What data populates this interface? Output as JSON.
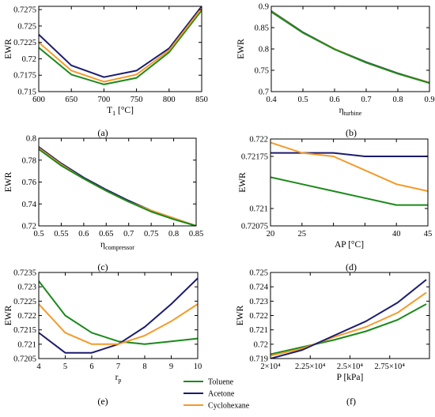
{
  "legend": {
    "items": [
      {
        "name": "Toluene",
        "color": "#1a8a1a"
      },
      {
        "name": "Acetone",
        "color": "#1c1c6e"
      },
      {
        "name": "Cyclohexane",
        "color": "#f59a2a"
      }
    ]
  },
  "chart_data": [
    {
      "panel": "(a)",
      "type": "line",
      "xlabel": "T1 [°C]",
      "xlabel_main": "T",
      "xlabel_sub": "1",
      "xlabel_rest": " [°C]",
      "ylabel": "EWR",
      "xlim": [
        600,
        850
      ],
      "ylim": [
        0.715,
        0.728
      ],
      "xticks": [
        600,
        650,
        700,
        750,
        800,
        850
      ],
      "xtick_labels": [
        "600",
        "650",
        "700",
        "750",
        "800",
        "850"
      ],
      "yticks": [
        0.715,
        0.7175,
        0.72,
        0.7225,
        0.725,
        0.7275
      ],
      "ytick_labels": [
        "0.715",
        "0.7175",
        "0.72",
        "0.7225",
        "0.725",
        "0.7275"
      ],
      "series": [
        {
          "name": "Toluene",
          "color": "#1a8a1a",
          "x": [
            600,
            650,
            700,
            750,
            800,
            850
          ],
          "y": [
            0.7217,
            0.7176,
            0.7161,
            0.7171,
            0.721,
            0.7274
          ]
        },
        {
          "name": "Acetone",
          "color": "#1c1c6e",
          "x": [
            600,
            650,
            700,
            750,
            800,
            850
          ],
          "y": [
            0.7237,
            0.719,
            0.7172,
            0.7182,
            0.7216,
            0.728
          ]
        },
        {
          "name": "Cyclohexane",
          "color": "#f59a2a",
          "x": [
            600,
            650,
            700,
            750,
            800,
            850
          ],
          "y": [
            0.7225,
            0.7182,
            0.7165,
            0.7176,
            0.7213,
            0.7277
          ]
        }
      ]
    },
    {
      "panel": "(b)",
      "type": "line",
      "xlabel": "ηturbine",
      "xlabel_main": "η",
      "xlabel_sub": "turbine",
      "xlabel_rest": "",
      "ylabel": "EWR",
      "xlim": [
        0.4,
        0.9
      ],
      "ylim": [
        0.7,
        0.9
      ],
      "xticks": [
        0.4,
        0.5,
        0.6,
        0.7,
        0.8,
        0.9
      ],
      "xtick_labels": [
        "0.4",
        "0.5",
        "0.6",
        "0.7",
        "0.8",
        "0.9"
      ],
      "yticks": [
        0.7,
        0.75,
        0.8,
        0.85,
        0.9
      ],
      "ytick_labels": [
        "0.7",
        "0.75",
        "0.8",
        "0.85",
        "0.9"
      ],
      "series": [
        {
          "name": "Acetone",
          "color": "#1c1c6e",
          "x": [
            0.4,
            0.5,
            0.6,
            0.7,
            0.8,
            0.9
          ],
          "y": [
            0.889,
            0.839,
            0.8,
            0.769,
            0.743,
            0.721
          ]
        },
        {
          "name": "Cyclohexane",
          "color": "#f59a2a",
          "x": [
            0.4,
            0.5,
            0.6,
            0.7,
            0.8,
            0.9
          ],
          "y": [
            0.888,
            0.838,
            0.8,
            0.768,
            0.742,
            0.721
          ]
        },
        {
          "name": "Toluene",
          "color": "#1a8a1a",
          "x": [
            0.4,
            0.5,
            0.6,
            0.7,
            0.8,
            0.9
          ],
          "y": [
            0.887,
            0.838,
            0.799,
            0.768,
            0.742,
            0.72
          ]
        }
      ]
    },
    {
      "panel": "(c)",
      "type": "line",
      "xlabel": "ηcompressor",
      "xlabel_main": "η",
      "xlabel_sub": "compressor",
      "xlabel_rest": "",
      "ylabel": "EWR",
      "xlim": [
        0.5,
        0.85
      ],
      "ylim": [
        0.72,
        0.8
      ],
      "xticks": [
        0.5,
        0.55,
        0.6,
        0.65,
        0.7,
        0.75,
        0.8,
        0.85
      ],
      "xtick_labels": [
        "0.5",
        "0.55",
        "0.6",
        "0.65",
        "0.7",
        "0.75",
        "0.8",
        "0.85"
      ],
      "yticks": [
        0.72,
        0.74,
        0.76,
        0.78,
        0.8
      ],
      "ytick_labels": [
        "0.72",
        "0.74",
        "0.76",
        "0.78",
        "0.8"
      ],
      "series": [
        {
          "name": "Acetone",
          "color": "#1c1c6e",
          "x": [
            0.5,
            0.55,
            0.6,
            0.65,
            0.7,
            0.75,
            0.8,
            0.85
          ],
          "y": [
            0.792,
            0.777,
            0.764,
            0.753,
            0.743,
            0.734,
            0.727,
            0.72
          ]
        },
        {
          "name": "Cyclohexane",
          "color": "#f59a2a",
          "x": [
            0.5,
            0.55,
            0.6,
            0.65,
            0.7,
            0.75,
            0.8,
            0.85
          ],
          "y": [
            0.791,
            0.776,
            0.763,
            0.752,
            0.742,
            0.734,
            0.727,
            0.72
          ]
        },
        {
          "name": "Toluene",
          "color": "#1a8a1a",
          "x": [
            0.5,
            0.55,
            0.6,
            0.65,
            0.7,
            0.75,
            0.8,
            0.85
          ],
          "y": [
            0.79,
            0.775,
            0.763,
            0.752,
            0.742,
            0.733,
            0.726,
            0.72
          ]
        }
      ]
    },
    {
      "panel": "(d)",
      "type": "line",
      "xlabel": "AP [°C]",
      "xlabel_main": "AP [°C]",
      "xlabel_sub": "",
      "xlabel_rest": "",
      "ylabel": "EWR",
      "xlim": [
        20,
        45
      ],
      "ylim": [
        0.72075,
        0.722
      ],
      "xticks": [
        20,
        25,
        30,
        35,
        40,
        45
      ],
      "xtick_labels": [
        "20",
        "25",
        "",
        "",
        "40",
        "45"
      ],
      "yticks": [
        0.72075,
        0.721,
        0.72175,
        0.722
      ],
      "ytick_labels": [
        "0.72075",
        "0.721",
        "0.72175",
        "0.722"
      ],
      "series": [
        {
          "name": "Acetone",
          "color": "#1c1c6e",
          "x": [
            20,
            25,
            30,
            35,
            40,
            45
          ],
          "y": [
            0.7218,
            0.7218,
            0.7218,
            0.72175,
            0.72175,
            0.72175
          ]
        },
        {
          "name": "Cyclohexane",
          "color": "#f59a2a",
          "x": [
            20,
            25,
            30,
            35,
            40,
            45
          ],
          "y": [
            0.72195,
            0.7218,
            0.72175,
            0.72155,
            0.72135,
            0.72125
          ]
        },
        {
          "name": "Toluene",
          "color": "#1a8a1a",
          "x": [
            20,
            25,
            30,
            35,
            40,
            45
          ],
          "y": [
            0.72145,
            0.72135,
            0.72125,
            0.72115,
            0.72105,
            0.72105
          ]
        }
      ]
    },
    {
      "panel": "(e)",
      "type": "line",
      "xlabel": "rp",
      "xlabel_main": "r",
      "xlabel_sub": "p",
      "xlabel_rest": "",
      "ylabel": "EWR",
      "xlim": [
        4,
        10
      ],
      "ylim": [
        0.7205,
        0.7235
      ],
      "xticks": [
        4,
        5,
        6,
        7,
        8,
        9,
        10
      ],
      "xtick_labels": [
        "4",
        "5",
        "6",
        "7",
        "8",
        "9",
        "10"
      ],
      "yticks": [
        0.7205,
        0.721,
        0.7215,
        0.722,
        0.7225,
        0.723,
        0.7235
      ],
      "ytick_labels": [
        "0.7205",
        "0.721",
        "0.7215",
        "0.722",
        "0.7225",
        "0.723",
        "0.7235"
      ],
      "series": [
        {
          "name": "Toluene",
          "color": "#1a8a1a",
          "x": [
            4,
            5,
            6,
            7,
            8,
            9,
            10
          ],
          "y": [
            0.7232,
            0.722,
            0.7214,
            0.7211,
            0.721,
            0.7211,
            0.7212
          ]
        },
        {
          "name": "Acetone",
          "color": "#1c1c6e",
          "x": [
            4,
            5,
            6,
            7,
            8,
            9,
            10
          ],
          "y": [
            0.7214,
            0.7207,
            0.7207,
            0.721,
            0.7216,
            0.7224,
            0.7233
          ]
        },
        {
          "name": "Cyclohexane",
          "color": "#f59a2a",
          "x": [
            4,
            5,
            6,
            7,
            8,
            9,
            10
          ],
          "y": [
            0.7224,
            0.7214,
            0.721,
            0.721,
            0.7213,
            0.7218,
            0.7224
          ]
        }
      ]
    },
    {
      "panel": "(f)",
      "type": "line",
      "xlabel": "P [kPa]",
      "xlabel_main": "P [kPa]",
      "xlabel_sub": "",
      "xlabel_rest": "",
      "ylabel": "EWR",
      "xlim": [
        20000,
        30000
      ],
      "ylim": [
        0.719,
        0.725
      ],
      "xticks": [
        20000,
        22500,
        25000,
        27500
      ],
      "xtick_labels": [
        "2×10⁴",
        "2.25×10⁴",
        "2.5×10⁴",
        "2.75×10⁴"
      ],
      "yticks": [
        0.719,
        0.72,
        0.721,
        0.722,
        0.723,
        0.724,
        0.725
      ],
      "ytick_labels": [
        "0.719",
        "0.72",
        "0.721",
        "0.722",
        "0.723",
        "0.724",
        "0.725"
      ],
      "series": [
        {
          "name": "Toluene",
          "color": "#1a8a1a",
          "x": [
            20000,
            22000,
            24000,
            26000,
            28000,
            29800
          ],
          "y": [
            0.7193,
            0.7198,
            0.7203,
            0.7209,
            0.7217,
            0.7228
          ]
        },
        {
          "name": "Cyclohexane",
          "color": "#f59a2a",
          "x": [
            20000,
            22000,
            24000,
            26000,
            28000,
            29800
          ],
          "y": [
            0.7192,
            0.7197,
            0.7205,
            0.7212,
            0.7222,
            0.7236
          ]
        },
        {
          "name": "Acetone",
          "color": "#1c1c6e",
          "x": [
            20000,
            22000,
            24000,
            26000,
            28000,
            29800
          ],
          "y": [
            0.719,
            0.7196,
            0.7206,
            0.7216,
            0.7229,
            0.7245
          ]
        }
      ]
    }
  ]
}
